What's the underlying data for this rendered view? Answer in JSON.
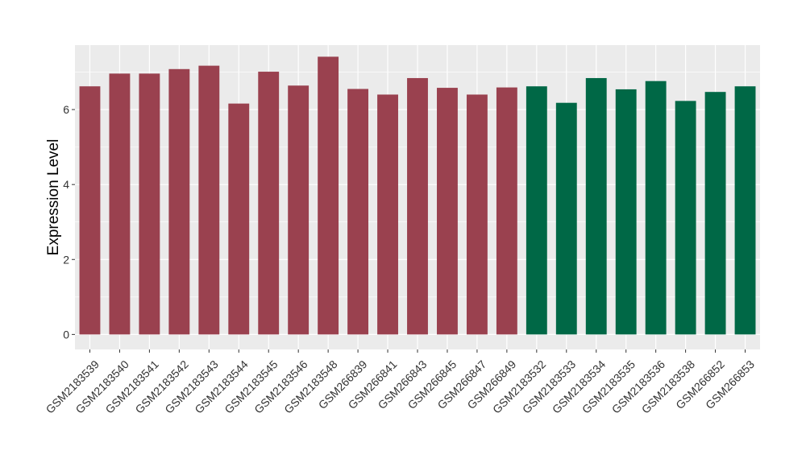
{
  "chart_data": {
    "type": "bar",
    "title": "",
    "xlabel": "",
    "ylabel": "Expression Level",
    "ylim": [
      -0.4,
      7.72
    ],
    "yticks": [
      0,
      2,
      4,
      6
    ],
    "grid": true,
    "background": "#ebebeb",
    "gridline_color": "#ffffff",
    "categories": [
      "GSM2183539",
      "GSM2183540",
      "GSM2183541",
      "GSM2183542",
      "GSM2183543",
      "GSM2183544",
      "GSM2183545",
      "GSM2183546",
      "GSM2183548",
      "GSM266839",
      "GSM266841",
      "GSM266843",
      "GSM266845",
      "GSM266847",
      "GSM266849",
      "GSM2183532",
      "GSM2183533",
      "GSM2183534",
      "GSM2183535",
      "GSM2183536",
      "GSM2183538",
      "GSM266852",
      "GSM266853"
    ],
    "values": [
      6.62,
      6.96,
      6.96,
      7.08,
      7.17,
      6.16,
      7.01,
      6.64,
      7.41,
      6.55,
      6.4,
      6.84,
      6.58,
      6.4,
      6.59,
      6.62,
      6.18,
      6.84,
      6.54,
      6.76,
      6.23,
      6.47,
      6.62
    ],
    "bar_colors": [
      "#9a414f",
      "#9a414f",
      "#9a414f",
      "#9a414f",
      "#9a414f",
      "#9a414f",
      "#9a414f",
      "#9a414f",
      "#9a414f",
      "#9a414f",
      "#9a414f",
      "#9a414f",
      "#9a414f",
      "#9a414f",
      "#9a414f",
      "#006846",
      "#006846",
      "#006846",
      "#006846",
      "#006846",
      "#006846",
      "#006846",
      "#006846"
    ]
  }
}
